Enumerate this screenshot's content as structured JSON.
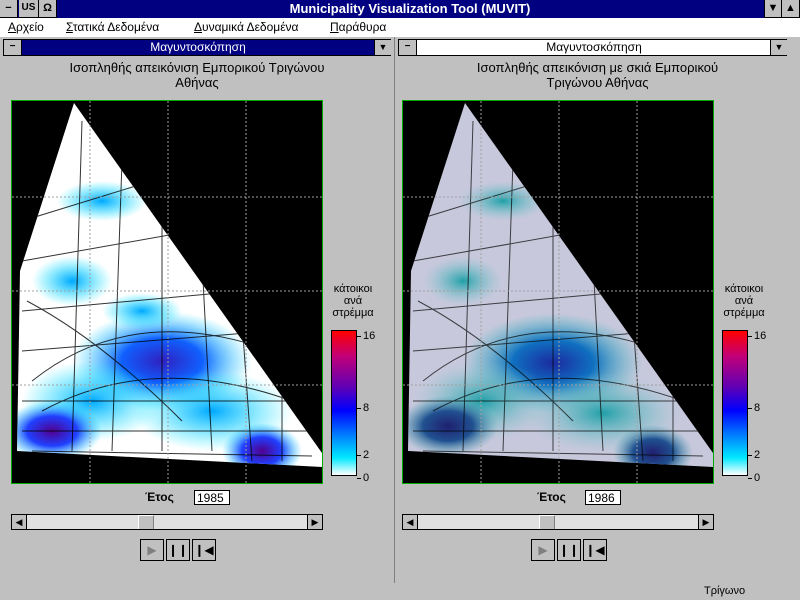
{
  "window": {
    "title": "Municipality Visualization Tool (MUVIT)",
    "sys_icon": "minus-icon",
    "keyboard_indicator": "US",
    "ohm_symbol": "Ω",
    "minimize_icon": "triangle-down-icon",
    "maximize_icon": "triangle-up-icon"
  },
  "menu": [
    {
      "label": "Αρχείο"
    },
    {
      "label": "Στατικά Δεδομένα"
    },
    {
      "label": "Δυναμικά Δεδομένα"
    },
    {
      "label": "Παράθυρα"
    }
  ],
  "left_panel": {
    "caption": "Μαγυντοσκόπηση",
    "caption_active": true,
    "title_line1": "Ισοπληθής απεικόνιση Εμπορικού Τριγώνου",
    "title_line2": "Αθήνας",
    "legend_title": [
      "κάτοικοι",
      "ανά",
      "στρέμμα"
    ],
    "legend_ticks": [
      "16",
      "8",
      "2",
      "0"
    ],
    "year_label": "Έτος",
    "year_value": "1985",
    "slider_fraction": 0.42
  },
  "right_panel": {
    "caption": "Μαγυντοσκόπηση",
    "caption_active": false,
    "title_line1": "Ισοπληθής απεικόνιση με σκιά Εμπορικού",
    "title_line2": "Τριγώνου Αθήνας",
    "legend_title": [
      "κάτοικοι",
      "ανά",
      "στρέμμα"
    ],
    "legend_ticks": [
      "16",
      "8",
      "2",
      "0"
    ],
    "year_label": "Έτος",
    "year_value": "1986",
    "slider_fraction": 0.46
  },
  "controls": {
    "play_icon": "play-icon",
    "pause_icon": "pause-icon",
    "rewind_icon": "rewind-icon"
  },
  "status": {
    "text": "Τρίγωνο"
  },
  "colors": {
    "caption_active": "#000080",
    "caption_inactive": "#ffffff",
    "map_border": "#00aa00"
  }
}
